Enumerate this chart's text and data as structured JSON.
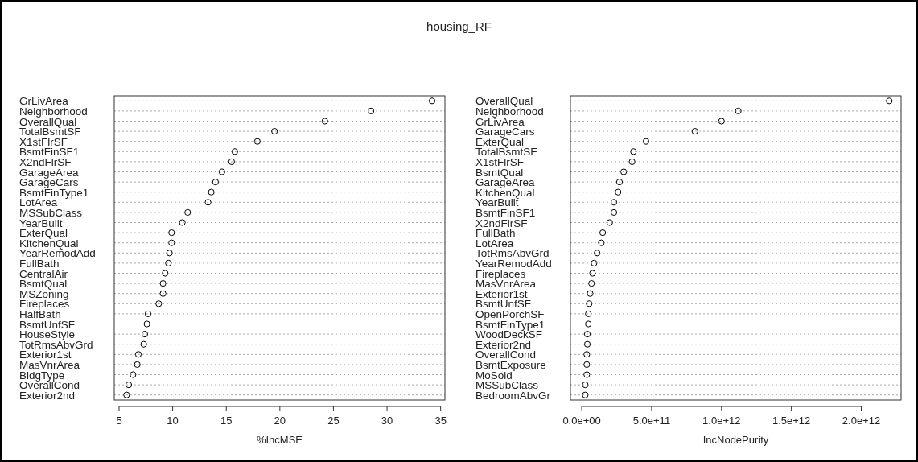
{
  "chart_data": [
    {
      "type": "scatter",
      "title": "housing_RF",
      "orientation": "horizontal",
      "xlabel": "%IncMSE",
      "marker": "circle",
      "grid": "y",
      "color": "#000000",
      "categories": [
        "GrLivArea",
        "Neighborhood",
        "OverallQual",
        "TotalBsmtSF",
        "X1stFlrSF",
        "BsmtFinSF1",
        "X2ndFlrSF",
        "GarageArea",
        "GarageCars",
        "BsmtFinType1",
        "LotArea",
        "MSSubClass",
        "YearBuilt",
        "ExterQual",
        "KitchenQual",
        "YearRemodAdd",
        "FullBath",
        "CentralAir",
        "BsmtQual",
        "MSZoning",
        "Fireplaces",
        "HalfBath",
        "BsmtUnfSF",
        "HouseStyle",
        "TotRmsAbvGrd",
        "Exterior1st",
        "MasVnrArea",
        "BldgType",
        "OverallCond",
        "Exterior2nd"
      ],
      "values": [
        34.2,
        28.5,
        24.2,
        19.5,
        17.9,
        15.8,
        15.5,
        14.6,
        14.0,
        13.6,
        13.3,
        11.4,
        10.9,
        9.9,
        9.9,
        9.7,
        9.6,
        9.3,
        9.1,
        9.1,
        8.7,
        7.7,
        7.6,
        7.4,
        7.3,
        6.8,
        6.7,
        6.3,
        5.9,
        5.7
      ],
      "xlim": [
        4.55,
        35.4
      ],
      "xticks": [
        5,
        10,
        15,
        20,
        25,
        30,
        35
      ]
    },
    {
      "type": "scatter",
      "orientation": "horizontal",
      "xlabel": "IncNodePurity",
      "marker": "circle",
      "grid": "y",
      "color": "#000000",
      "categories": [
        "OverallQual",
        "Neighborhood",
        "GrLivArea",
        "GarageCars",
        "ExterQual",
        "TotalBsmtSF",
        "X1stFlrSF",
        "BsmtQual",
        "GarageArea",
        "KitchenQual",
        "YearBuilt",
        "BsmtFinSF1",
        "X2ndFlrSF",
        "FullBath",
        "LotArea",
        "TotRmsAbvGrd",
        "YearRemodAdd",
        "Fireplaces",
        "MasVnrArea",
        "Exterior1st",
        "BsmtUnfSF",
        "OpenPorchSF",
        "BsmtFinType1",
        "WoodDeckSF",
        "Exterior2nd",
        "OverallCond",
        "BsmtExposure",
        "MoSold",
        "MSSubClass",
        "BedroomAbvGr"
      ],
      "values": [
        2200000000000.0,
        1120000000000.0,
        1000000000000.0,
        810000000000.0,
        460000000000.0,
        370000000000.0,
        360000000000.0,
        300000000000.0,
        270000000000.0,
        260000000000.0,
        230000000000.0,
        230000000000.0,
        200000000000.0,
        150000000000.0,
        140000000000.0,
        110000000000.0,
        88000000000.0,
        77000000000.0,
        70000000000.0,
        60000000000.0,
        53000000000.0,
        47000000000.0,
        47000000000.0,
        40000000000.0,
        40000000000.0,
        36000000000.0,
        36000000000.0,
        36000000000.0,
        25000000000.0,
        25000000000.0
      ],
      "xlim": [
        -81000000000.0,
        2285000000000.0
      ],
      "xticks": [
        {
          "value": 0,
          "label": "0.0e+00"
        },
        {
          "value": 500000000000.0,
          "label": "5.0e+11"
        },
        {
          "value": 1000000000000.0,
          "label": "1.0e+12"
        },
        {
          "value": 1500000000000.0,
          "label": "1.5e+12"
        },
        {
          "value": 2000000000000.0,
          "label": "2.0e+12"
        }
      ]
    }
  ]
}
